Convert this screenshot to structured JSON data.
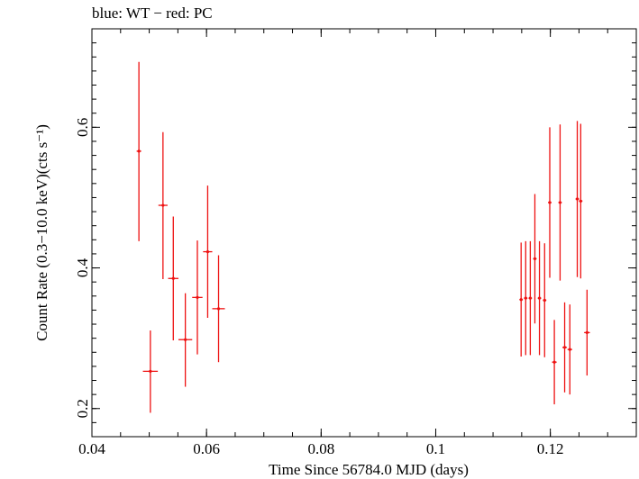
{
  "chart_data": {
    "type": "scatter",
    "title": "blue: WT − red: PC",
    "xlabel": "Time Since 56784.0 MJD (days)",
    "ylabel": "Count Rate (0.3−10.0 keV)(cts s⁻¹)",
    "xlim": [
      0.04,
      0.135
    ],
    "ylim": [
      0.16,
      0.74
    ],
    "xticks": [
      {
        "value": 0.04,
        "label": "0.04"
      },
      {
        "value": 0.06,
        "label": "0.06"
      },
      {
        "value": 0.08,
        "label": "0.08"
      },
      {
        "value": 0.1,
        "label": "0.1"
      },
      {
        "value": 0.12,
        "label": "0.12"
      }
    ],
    "yticks": [
      {
        "value": 0.2,
        "label": "0.2"
      },
      {
        "value": 0.4,
        "label": "0.4"
      },
      {
        "value": 0.6,
        "label": "0.6"
      }
    ],
    "grid": false,
    "series": [
      {
        "color": "#ee1111",
        "points": [
          {
            "x": 0.0482,
            "xerr": 0.0004,
            "y": 0.566,
            "yerr_lo": 0.128,
            "yerr_hi": 0.127
          },
          {
            "x": 0.0502,
            "xerr": 0.0013,
            "y": 0.253,
            "yerr_lo": 0.059,
            "yerr_hi": 0.058
          },
          {
            "x": 0.0524,
            "xerr": 0.0008,
            "y": 0.489,
            "yerr_lo": 0.105,
            "yerr_hi": 0.104
          },
          {
            "x": 0.0542,
            "xerr": 0.0009,
            "y": 0.385,
            "yerr_lo": 0.088,
            "yerr_hi": 0.088
          },
          {
            "x": 0.0563,
            "xerr": 0.0012,
            "y": 0.298,
            "yerr_lo": 0.067,
            "yerr_hi": 0.066
          },
          {
            "x": 0.0584,
            "xerr": 0.0009,
            "y": 0.358,
            "yerr_lo": 0.081,
            "yerr_hi": 0.081
          },
          {
            "x": 0.0602,
            "xerr": 0.0008,
            "y": 0.423,
            "yerr_lo": 0.094,
            "yerr_hi": 0.094
          },
          {
            "x": 0.0621,
            "xerr": 0.0011,
            "y": 0.342,
            "yerr_lo": 0.076,
            "yerr_hi": 0.076
          },
          {
            "x": 0.1149,
            "xerr": 0.0003,
            "y": 0.355,
            "yerr_lo": 0.081,
            "yerr_hi": 0.081
          },
          {
            "x": 0.1157,
            "xerr": 0.0003,
            "y": 0.357,
            "yerr_lo": 0.081,
            "yerr_hi": 0.081
          },
          {
            "x": 0.1165,
            "xerr": 0.0003,
            "y": 0.357,
            "yerr_lo": 0.081,
            "yerr_hi": 0.081
          },
          {
            "x": 0.1173,
            "xerr": 0.0003,
            "y": 0.413,
            "yerr_lo": 0.092,
            "yerr_hi": 0.092
          },
          {
            "x": 0.1181,
            "xerr": 0.0003,
            "y": 0.357,
            "yerr_lo": 0.081,
            "yerr_hi": 0.081
          },
          {
            "x": 0.119,
            "xerr": 0.0003,
            "y": 0.354,
            "yerr_lo": 0.081,
            "yerr_hi": 0.081
          },
          {
            "x": 0.1199,
            "xerr": 0.0003,
            "y": 0.493,
            "yerr_lo": 0.107,
            "yerr_hi": 0.107
          },
          {
            "x": 0.1207,
            "xerr": 0.0004,
            "y": 0.266,
            "yerr_lo": 0.06,
            "yerr_hi": 0.06
          },
          {
            "x": 0.1217,
            "xerr": 0.0003,
            "y": 0.493,
            "yerr_lo": 0.111,
            "yerr_hi": 0.111
          },
          {
            "x": 0.1225,
            "xerr": 0.0004,
            "y": 0.287,
            "yerr_lo": 0.064,
            "yerr_hi": 0.064
          },
          {
            "x": 0.1234,
            "xerr": 0.0004,
            "y": 0.284,
            "yerr_lo": 0.064,
            "yerr_hi": 0.064
          },
          {
            "x": 0.1247,
            "xerr": 0.0003,
            "y": 0.498,
            "yerr_lo": 0.111,
            "yerr_hi": 0.111
          },
          {
            "x": 0.1253,
            "xerr": 0.0003,
            "y": 0.495,
            "yerr_lo": 0.11,
            "yerr_hi": 0.11
          },
          {
            "x": 0.1264,
            "xerr": 0.0005,
            "y": 0.308,
            "yerr_lo": 0.061,
            "yerr_hi": 0.061
          }
        ]
      }
    ]
  }
}
